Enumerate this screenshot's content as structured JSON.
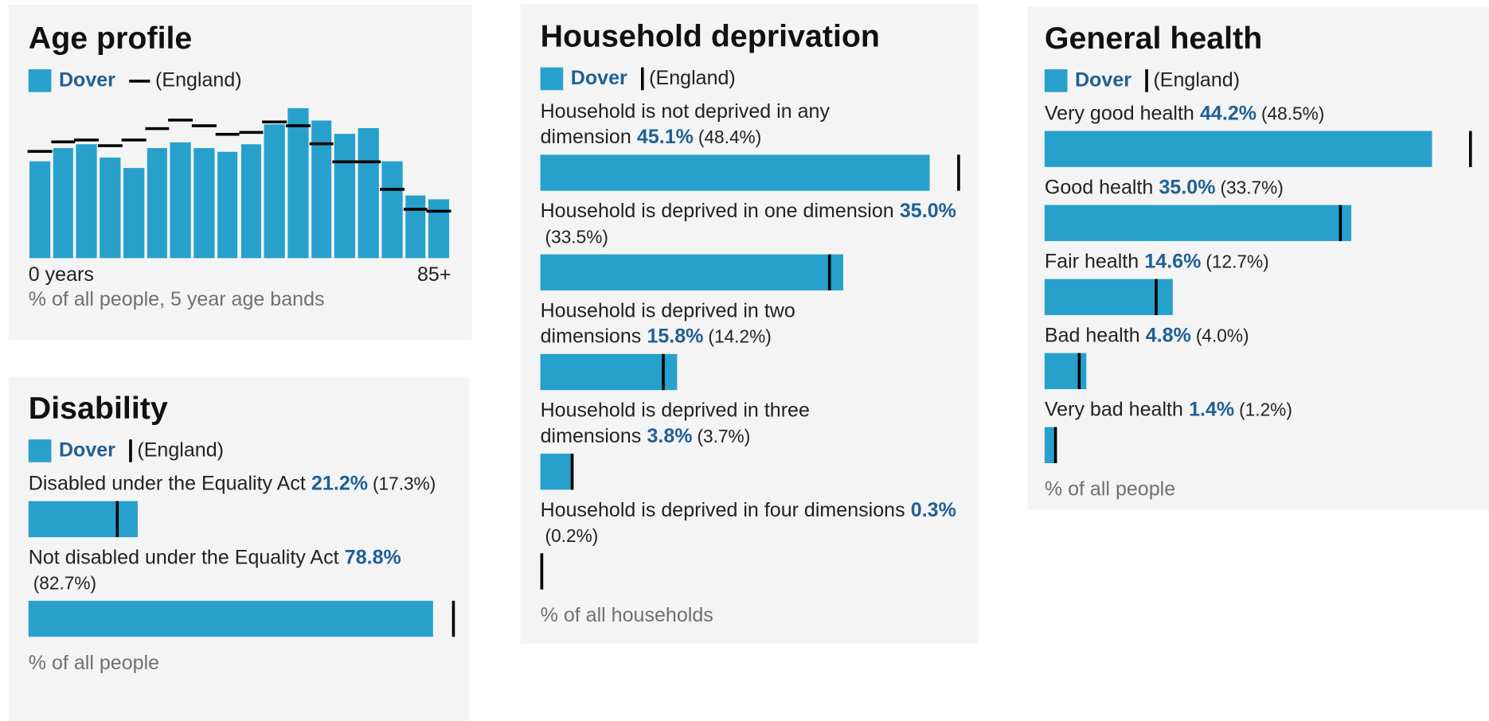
{
  "chart_data": [
    {
      "type": "bar",
      "title": "Age profile",
      "categories": [
        "0 years",
        null,
        null,
        null,
        null,
        null,
        null,
        null,
        null,
        null,
        null,
        null,
        null,
        null,
        null,
        null,
        null,
        "85+"
      ],
      "series": [
        {
          "name": "Dover",
          "color": "#27a0cc",
          "values": [
            4.9,
            5.6,
            5.8,
            5.1,
            4.6,
            5.6,
            5.9,
            5.6,
            5.4,
            5.8,
            6.8,
            7.6,
            7.0,
            6.3,
            6.6,
            4.9,
            3.2,
            3.0
          ]
        },
        {
          "name": "(England)",
          "color": "#000000",
          "values": [
            5.4,
            5.9,
            6.0,
            5.7,
            6.0,
            6.6,
            7.0,
            6.7,
            6.3,
            6.4,
            6.9,
            6.7,
            5.8,
            4.9,
            4.9,
            3.5,
            2.5,
            2.4
          ]
        }
      ],
      "ylim": [
        0,
        8
      ],
      "note": "% of all people, 5 year age bands"
    },
    {
      "type": "hbar",
      "title": "Disability",
      "categories": [
        "Disabled under the Equality Act",
        "Not disabled under the Equality Act"
      ],
      "series": [
        {
          "name": "Dover",
          "color": "#27a0cc",
          "values": [
            21.2,
            78.8
          ],
          "value_labels": [
            "21.2%",
            "78.8%"
          ]
        },
        {
          "name": "(England)",
          "color": "#000000",
          "values": [
            17.3,
            82.7
          ],
          "value_labels": [
            "(17.3%)",
            "(82.7%)"
          ]
        }
      ],
      "xlim": [
        0,
        85
      ],
      "note": "% of all people"
    },
    {
      "type": "hbar",
      "title": "Household deprivation",
      "categories": [
        "Household is not deprived in any dimension",
        "Household is deprived in one dimension",
        "Household is deprived in two dimensions",
        "Household is deprived in three dimensions",
        "Household is deprived in four dimensions"
      ],
      "series": [
        {
          "name": "Dover",
          "color": "#27a0cc",
          "values": [
            45.1,
            35.0,
            15.8,
            3.8,
            0.3
          ],
          "value_labels": [
            "45.1%",
            "35.0%",
            "15.8%",
            "3.8%",
            "0.3%"
          ]
        },
        {
          "name": "(England)",
          "color": "#000000",
          "values": [
            48.4,
            33.5,
            14.2,
            3.7,
            0.2
          ],
          "value_labels": [
            "(48.4%)",
            "(33.5%)",
            "(14.2%)",
            "(3.7%)",
            "(0.2%)"
          ]
        }
      ],
      "xlim": [
        0,
        50
      ],
      "note": "% of all households"
    },
    {
      "type": "hbar",
      "title": "General health",
      "categories": [
        "Very good health",
        "Good health",
        "Fair health",
        "Bad health",
        "Very bad health"
      ],
      "series": [
        {
          "name": "Dover",
          "color": "#27a0cc",
          "values": [
            44.2,
            35.0,
            14.6,
            4.8,
            1.4
          ],
          "value_labels": [
            "44.2%",
            "35.0%",
            "14.6%",
            "4.8%",
            "1.4%"
          ]
        },
        {
          "name": "(England)",
          "color": "#000000",
          "values": [
            48.5,
            33.7,
            12.7,
            4.0,
            1.2
          ],
          "value_labels": [
            "(48.5%)",
            "(33.7%)",
            "(12.7%)",
            "(4.0%)",
            "(1.2%)"
          ]
        }
      ],
      "xlim": [
        0,
        50
      ],
      "note": "% of all people"
    }
  ]
}
